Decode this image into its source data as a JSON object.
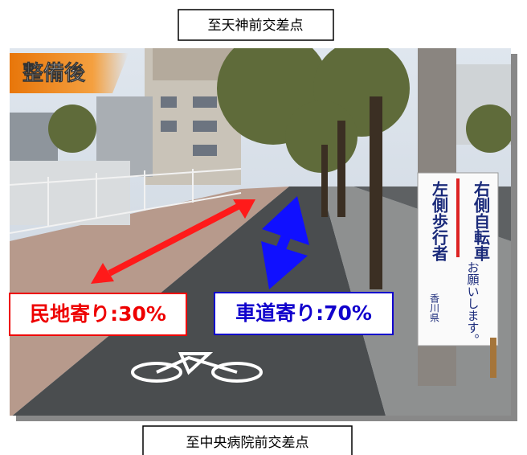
{
  "header": {
    "destination_top": "至天神前交差点",
    "destination_bottom": "至中央病院前交差点"
  },
  "badge": "整備後",
  "labels": {
    "left": "民地寄り:30%",
    "right": "車道寄り:70%"
  },
  "sign": {
    "right_column": "右側自転車",
    "left_column": "左側歩行者",
    "request": "お願いします。",
    "issuer": "香川県"
  }
}
